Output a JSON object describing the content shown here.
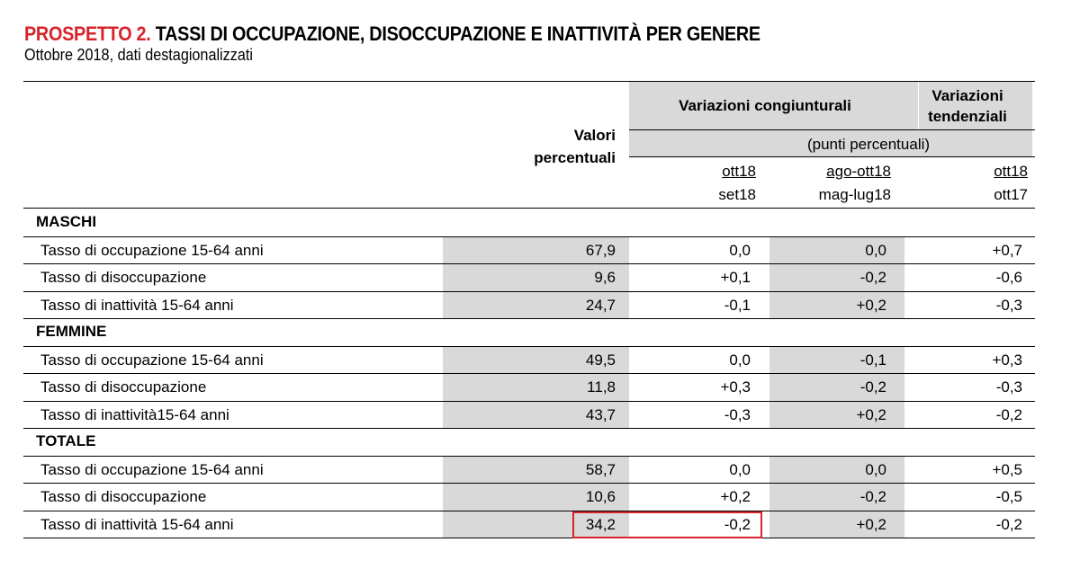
{
  "title": {
    "prefix": "PROSPETTO 2.",
    "text": "TASSI DI OCCUPAZIONE, DISOCCUPAZIONE E INATTIVITÀ PER GENERE",
    "subtitle": "Ottobre 2018, dati destagionalizzati"
  },
  "header": {
    "valori_line1": "Valori",
    "valori_line2": "percentuali",
    "var_cong": "Variazioni congiunturali",
    "var_tend_line1": "Variazioni",
    "var_tend_line2": "tendenziali",
    "punti": "(punti percentuali)",
    "col1_top": "ott18",
    "col1_bottom": "set18",
    "col2_top": "ago-ott18",
    "col2_bottom": "mag-lug18",
    "col3_top": "ott18",
    "col3_bottom": "ott17"
  },
  "sections": [
    {
      "label": "MASCHI",
      "rows": [
        {
          "label": "Tasso di occupazione 15-64 anni",
          "valore": "67,9",
          "cong1": "0,0",
          "cong2": "0,0",
          "tend": "+0,7"
        },
        {
          "label": "Tasso di disoccupazione",
          "valore": "9,6",
          "cong1": "+0,1",
          "cong2": "-0,2",
          "tend": "-0,6"
        },
        {
          "label": "Tasso di inattività 15-64 anni",
          "valore": "24,7",
          "cong1": "-0,1",
          "cong2": "+0,2",
          "tend": "-0,3"
        }
      ]
    },
    {
      "label": "FEMMINE",
      "rows": [
        {
          "label": "Tasso di occupazione 15-64 anni",
          "valore": "49,5",
          "cong1": "0,0",
          "cong2": "-0,1",
          "tend": "+0,3"
        },
        {
          "label": "Tasso di disoccupazione",
          "valore": "11,8",
          "cong1": "+0,3",
          "cong2": "-0,2",
          "tend": "-0,3"
        },
        {
          "label": "Tasso di inattività15-64 anni",
          "valore": "43,7",
          "cong1": "-0,3",
          "cong2": "+0,2",
          "tend": "-0,2"
        }
      ]
    },
    {
      "label": "TOTALE",
      "rows": [
        {
          "label": "Tasso di occupazione 15-64 anni",
          "valore": "58,7",
          "cong1": "0,0",
          "cong2": "0,0",
          "tend": "+0,5"
        },
        {
          "label": "Tasso di disoccupazione",
          "valore": "10,6",
          "cong1": "+0,2",
          "cong2": "-0,2",
          "tend": "-0,5"
        },
        {
          "label": "Tasso di inattività 15-64 anni",
          "valore": "34,2",
          "cong1": "-0,2",
          "cong2": "+0,2",
          "tend": "-0,2"
        }
      ]
    }
  ],
  "colors": {
    "title_accent": "#d8232a",
    "cell_gray": "#d9d9d9",
    "highlight_box": "#d8232a"
  }
}
